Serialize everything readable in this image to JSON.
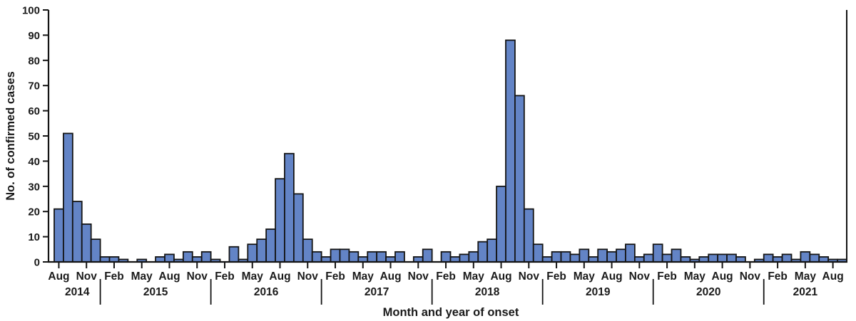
{
  "chart_data": {
    "type": "bar",
    "title": "",
    "ylabel": "No. of confirmed cases",
    "xlabel": "Month and year of onset",
    "ylim": [
      0,
      100
    ],
    "ytick_interval": 10,
    "grid": "off",
    "legend": "none",
    "bar_fill": "#6384C6",
    "bar_stroke": "#141414",
    "labeled_months": [
      "Feb",
      "May",
      "Aug",
      "Nov"
    ],
    "start_month": "Aug 2014",
    "end_month": "Sep 2021",
    "years": [
      {
        "year": "2014",
        "months": [
          "Aug",
          "Sep",
          "Oct",
          "Nov",
          "Dec"
        ],
        "values": [
          21,
          51,
          24,
          15,
          9
        ]
      },
      {
        "year": "2015",
        "months": [
          "Jan",
          "Feb",
          "Mar",
          "Apr",
          "May",
          "Jun",
          "Jul",
          "Aug",
          "Sep",
          "Oct",
          "Nov",
          "Dec"
        ],
        "values": [
          2,
          2,
          1,
          0,
          1,
          0,
          2,
          3,
          1,
          4,
          2,
          4
        ]
      },
      {
        "year": "2016",
        "months": [
          "Jan",
          "Feb",
          "Mar",
          "Apr",
          "May",
          "Jun",
          "Jul",
          "Aug",
          "Sep",
          "Oct",
          "Nov",
          "Dec"
        ],
        "values": [
          1,
          0,
          6,
          1,
          7,
          9,
          13,
          33,
          43,
          27,
          9,
          4
        ]
      },
      {
        "year": "2017",
        "months": [
          "Jan",
          "Feb",
          "Mar",
          "Apr",
          "May",
          "Jun",
          "Jul",
          "Aug",
          "Sep",
          "Oct",
          "Nov",
          "Dec"
        ],
        "values": [
          2,
          5,
          5,
          4,
          2,
          4,
          4,
          2,
          4,
          0,
          2,
          5
        ]
      },
      {
        "year": "2018",
        "months": [
          "Jan",
          "Feb",
          "Mar",
          "Apr",
          "May",
          "Jun",
          "Jul",
          "Aug",
          "Sep",
          "Oct",
          "Nov",
          "Dec"
        ],
        "values": [
          0,
          4,
          2,
          3,
          4,
          8,
          9,
          30,
          88,
          66,
          21,
          7
        ]
      },
      {
        "year": "2019",
        "months": [
          "Jan",
          "Feb",
          "Mar",
          "Apr",
          "May",
          "Jun",
          "Jul",
          "Aug",
          "Sep",
          "Oct",
          "Nov",
          "Dec"
        ],
        "values": [
          2,
          4,
          4,
          3,
          5,
          2,
          5,
          4,
          5,
          7,
          2,
          3
        ]
      },
      {
        "year": "2020",
        "months": [
          "Jan",
          "Feb",
          "Mar",
          "Apr",
          "May",
          "Jun",
          "Jul",
          "Aug",
          "Sep",
          "Oct",
          "Nov",
          "Dec"
        ],
        "values": [
          7,
          3,
          5,
          2,
          1,
          2,
          3,
          3,
          3,
          2,
          0,
          1
        ]
      },
      {
        "year": "2021",
        "months": [
          "Jan",
          "Feb",
          "Mar",
          "Apr",
          "May",
          "Jun",
          "Jul",
          "Aug",
          "Sep"
        ],
        "values": [
          3,
          2,
          3,
          1,
          4,
          3,
          2,
          1,
          1
        ]
      }
    ]
  }
}
